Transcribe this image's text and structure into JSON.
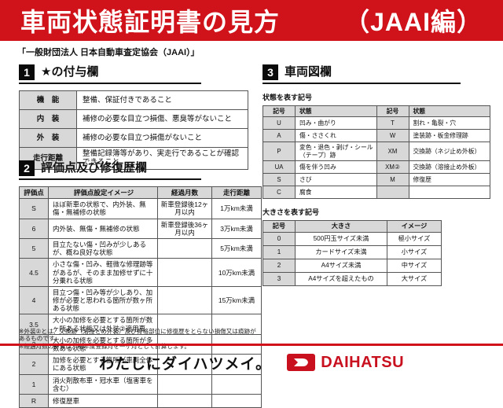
{
  "header": {
    "title": "車両状態証明書の見方",
    "edition": "（JAAI編）"
  },
  "subtitle": "「一般財団法人 日本自動車査定協会（JAAI）」",
  "section1": {
    "num": "1",
    "title": "★の付与欄",
    "rows": [
      [
        "機　能",
        "整備、保証付きであること"
      ],
      [
        "内　装",
        "補修の必要な目立つ損傷、悪臭等がないこと"
      ],
      [
        "外　装",
        "補修の必要な目立つ損傷がないこと"
      ],
      [
        "走行距離",
        "整備記録簿等があり、実走行であることが確認できること"
      ]
    ]
  },
  "section2": {
    "num": "2",
    "title": "評価点及び修復歴欄",
    "headers": [
      "評価点",
      "評価点設定イメージ",
      "経過月数",
      "走行距離"
    ],
    "rows": [
      [
        "S",
        "ほぼ新車の状態で、内外装、無傷・無補修の状態",
        "新車登録後12ヶ月以内",
        "1万km未満"
      ],
      [
        "6",
        "内外装、無傷・無補修の状態",
        "新車登録後36ヶ月以内",
        "3万km未満"
      ],
      [
        "5",
        "目立たない傷・凹みが少しあるが、概ね良好な状態",
        "",
        "5万km未満"
      ],
      [
        "4.5",
        "小さな傷・凹み、軽微な修理跡等があるが、そのまま加修せずに十分乗れる状態",
        "",
        "10万km未満"
      ],
      [
        "4",
        "目立つ傷・凹み等が少しあり、加修が必要と思われる箇所が数ヶ所ある状態",
        "",
        "15万km未満"
      ],
      [
        "3.5",
        "大小の加修を必要とする箇所が数ヶ所ある状態又は外装②適用車",
        "",
        ""
      ],
      [
        "3",
        "大小の加修を必要とする箇所が多数ある状態",
        "",
        ""
      ],
      [
        "2",
        "加修を必要とする箇所が車両全体にある状態",
        "",
        ""
      ],
      [
        "1",
        "消火剤散布車・冠水車（塩害車を含む）",
        "",
        ""
      ],
      [
        "R",
        "修復歴車",
        "",
        ""
      ]
    ]
  },
  "notes": {
    "line1": "※外装②とは、交換跡（溶接とめ外装）及び骨格部位に修復歴をとらない損傷又は痕跡があるものです。",
    "line2": "※経過月数の計算は、初年度登録月を一ヶ月として計算します。"
  },
  "section3": {
    "num": "3",
    "title": "車両図欄",
    "condition_table": {
      "label": "状態を表す記号",
      "headers": [
        "記号",
        "状態",
        "記号",
        "状態"
      ],
      "rows": [
        [
          "U",
          "凹み・曲がり",
          "T",
          "割れ・亀裂・穴"
        ],
        [
          "A",
          "傷・ささくれ",
          "W",
          "塗装跡・板金修理跡"
        ],
        [
          "P",
          "変色・退色・剥げ・シール（テープ）跡",
          "XM",
          "交換跡（ネジ止め外板）"
        ],
        [
          "UA",
          "傷を伴う凹み",
          "XM②",
          "交換跡（溶接止め外板）"
        ],
        [
          "S",
          "さび",
          "M",
          "修復歴"
        ],
        [
          "C",
          "腐食",
          "",
          ""
        ]
      ]
    },
    "size_table": {
      "label": "大きさを表す記号",
      "headers": [
        "記号",
        "大きさ",
        "イメージ"
      ],
      "rows": [
        [
          "0",
          "500円玉サイズ未満",
          "極小サイズ"
        ],
        [
          "1",
          "カードサイズ未満",
          "小サイズ"
        ],
        [
          "2",
          "A4サイズ未満",
          "中サイズ"
        ],
        [
          "3",
          "A4サイズを超えたもの",
          "大サイズ"
        ]
      ]
    }
  },
  "footer": {
    "slogan": "わたしにダイハツメイ。",
    "brand": "DAIHATSU"
  },
  "colors": {
    "banner_red": "#d0121b",
    "cell_gray": "#d8d8d8",
    "brand_red": "#c8101e"
  }
}
